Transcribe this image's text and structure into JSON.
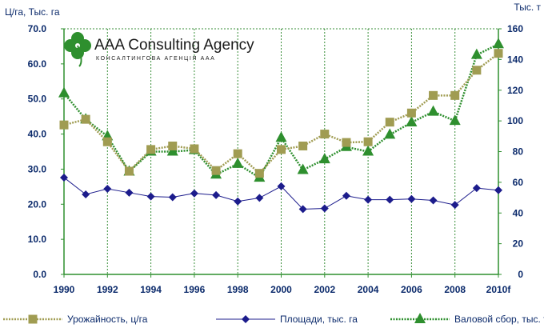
{
  "chart_data": {
    "type": "line",
    "categories": [
      "1990",
      "1991",
      "1992",
      "1993",
      "1994",
      "1995",
      "1996",
      "1997",
      "1998",
      "1999",
      "2000",
      "2001",
      "2002",
      "2003",
      "2004",
      "2005",
      "2006",
      "2007",
      "2008",
      "2009",
      "2010f"
    ],
    "x_tick_labels": [
      "1990",
      "1992",
      "1994",
      "1996",
      "1998",
      "2000",
      "2002",
      "2004",
      "2006",
      "2008",
      "2010f"
    ],
    "y_left": {
      "label": "Ц/га, Тыс. га",
      "range": [
        0,
        70
      ],
      "ticks": [
        "0.0",
        "10.0",
        "20.0",
        "30.0",
        "40.0",
        "50.0",
        "60.0",
        "70.0"
      ]
    },
    "y_right": {
      "label": "Тыс. т",
      "range": [
        0,
        160
      ],
      "ticks": [
        "0",
        "20",
        "40",
        "60",
        "80",
        "100",
        "120",
        "140",
        "160"
      ]
    },
    "grid": "vertical dotted",
    "legend_position": "bottom",
    "series": [
      {
        "name": "Урожайность, ц/га",
        "axis": "left",
        "color": "#a09c52",
        "marker": "square",
        "values": [
          42.6,
          44.2,
          37.8,
          29.4,
          35.6,
          36.6,
          35.8,
          29.6,
          34.4,
          28.8,
          35.6,
          36.6,
          40.0,
          37.6,
          37.8,
          43.4,
          46.0,
          51.0,
          51.0,
          58.2,
          63.0
        ]
      },
      {
        "name": "Площади, тыс. га",
        "axis": "left",
        "color": "#1c1c8c",
        "marker": "diamond",
        "values": [
          27.6,
          22.8,
          24.4,
          23.3,
          22.2,
          22.0,
          23.1,
          22.6,
          20.8,
          21.8,
          25.1,
          18.6,
          18.8,
          22.4,
          21.3,
          21.3,
          21.5,
          21.1,
          19.8,
          24.6,
          24.0
        ]
      },
      {
        "name": "Валовой сбор, тыс. т",
        "axis": "right",
        "color": "#2e8f2e",
        "marker": "triangle",
        "values": [
          118,
          101,
          90,
          67,
          80,
          80,
          81,
          65,
          72,
          63,
          89,
          68,
          75,
          83,
          80,
          91,
          99,
          106,
          100,
          143,
          150
        ]
      }
    ]
  },
  "logo": {
    "main_text": "AAA Consulting Agency",
    "sub_text": "КОНСАЛТИНГОВА АГЕНЦІЯ ААА",
    "color": "#2e8f2e"
  }
}
